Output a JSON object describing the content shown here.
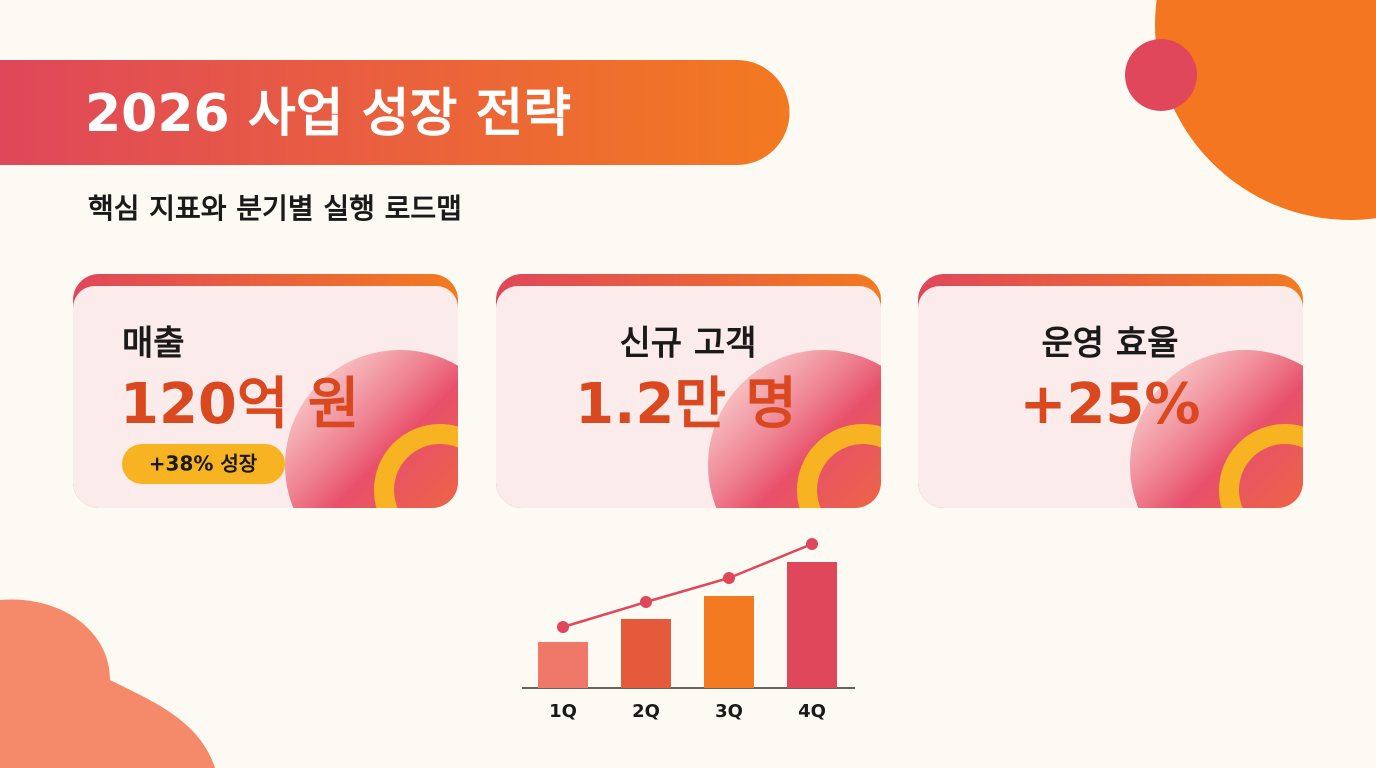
{
  "title": "2026 사업 성장 전략",
  "subtitle": "핵심 지표와 분기별 실행 로드맵",
  "cards": [
    {
      "label": "매출",
      "value": "120억 원",
      "badge": "+38% 성장"
    },
    {
      "label": "신규 고객",
      "value": "1.2만 명"
    },
    {
      "label": "운영 효율",
      "value": "+25%"
    }
  ],
  "chart_data": {
    "type": "bar",
    "categories": [
      "1Q",
      "2Q",
      "3Q",
      "4Q"
    ],
    "ylim": [
      0,
      150
    ],
    "series": [
      {
        "type": "bar",
        "colors": [
          "#f07868",
          "#e45a3a",
          "#f37a20",
          "#e0475a"
        ],
        "values": [
          46,
          69,
          92,
          126
        ]
      },
      {
        "type": "line",
        "color": "#e0475a",
        "values": [
          61,
          86,
          110,
          144
        ]
      }
    ]
  }
}
